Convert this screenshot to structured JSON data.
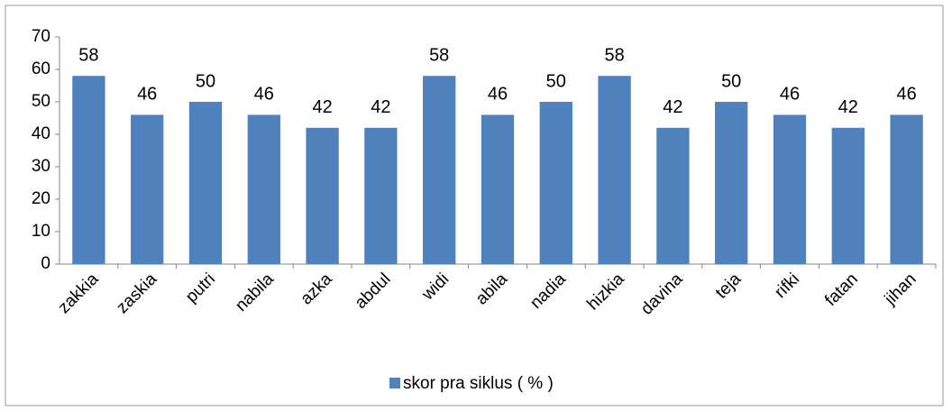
{
  "chart_data": {
    "type": "bar",
    "categories": [
      "zakkia",
      "zaskia",
      "putri",
      "nabila",
      "azka",
      "abdul",
      "widi",
      "abila",
      "nadia",
      "hizkia",
      "davina",
      "teja",
      "rifki",
      "fatan",
      "jihan"
    ],
    "series": [
      {
        "name": "skor pra siklus ( % )",
        "color": "#4f81bd",
        "values": [
          58,
          46,
          50,
          46,
          42,
          42,
          58,
          46,
          50,
          58,
          42,
          50,
          46,
          42,
          46
        ]
      }
    ],
    "ylim": [
      0,
      70
    ],
    "yticks": [
      0,
      10,
      20,
      30,
      40,
      50,
      60,
      70
    ],
    "legend": "bottom"
  }
}
